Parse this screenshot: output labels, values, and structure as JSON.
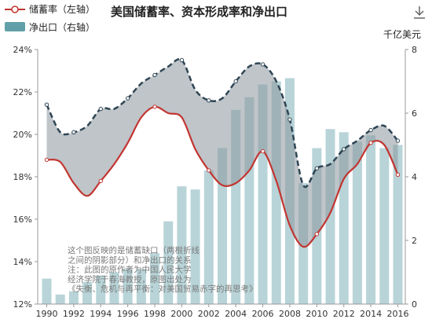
{
  "chart_data": {
    "type": "bar+line",
    "title": "美国储蓄率、资本形成率和净出口",
    "legend": [
      {
        "name": "储蓄率（左轴）",
        "color": "#c23531",
        "marker": "line-circle"
      },
      {
        "name": "净出口（右轴）",
        "color": "#61a0a8",
        "marker": "rect"
      }
    ],
    "legend_position": "top-left",
    "y_left": {
      "min": 12,
      "max": 24,
      "step": 2,
      "format": "%",
      "ticks": [
        "12%",
        "14%",
        "16%",
        "18%",
        "20%",
        "22%",
        "24%"
      ]
    },
    "y_right": {
      "min": 0,
      "max": 8,
      "step": 2,
      "unit": "千亿美元",
      "ticks": [
        "0",
        "2",
        "4",
        "6",
        "8"
      ]
    },
    "x_labels": [
      "1990",
      "1992",
      "1994",
      "1996",
      "1998",
      "2000",
      "2002",
      "2004",
      "2006",
      "2008",
      "2010",
      "2012",
      "2014",
      "2016"
    ],
    "x": [
      1990,
      1991,
      1992,
      1993,
      1994,
      1995,
      1996,
      1997,
      1998,
      1999,
      2000,
      2001,
      2002,
      2003,
      2004,
      2005,
      2006,
      2007,
      2008,
      2009,
      2010,
      2011,
      2012,
      2013,
      2014,
      2015,
      2016
    ],
    "series": [
      {
        "name": "净出口（右轴）",
        "axis": "right",
        "kind": "bar",
        "values": [
          0.8,
          0.3,
          0.4,
          0.7,
          0.9,
          1.0,
          1.1,
          1.1,
          1.6,
          2.6,
          3.7,
          3.6,
          4.2,
          4.9,
          6.1,
          6.5,
          6.9,
          7.0,
          7.1,
          3.8,
          4.9,
          5.5,
          5.4,
          5.1,
          5.3,
          4.9,
          5.0
        ]
      },
      {
        "name": "储蓄率（左轴）",
        "axis": "left",
        "kind": "line",
        "values": [
          18.8,
          18.7,
          17.7,
          17.1,
          17.8,
          18.6,
          19.6,
          20.8,
          21.3,
          21.0,
          20.8,
          19.3,
          18.3,
          17.6,
          17.7,
          18.3,
          19.2,
          17.8,
          15.7,
          14.7,
          15.3,
          16.3,
          17.9,
          18.6,
          19.6,
          19.5,
          18.1
        ]
      },
      {
        "name": "",
        "axis": "left",
        "kind": "dashed-line",
        "values": [
          21.4,
          20.1,
          20.1,
          20.4,
          21.2,
          21.2,
          21.7,
          22.4,
          22.8,
          23.2,
          23.5,
          22.1,
          21.6,
          21.7,
          22.5,
          23.2,
          23.3,
          22.5,
          20.7,
          17.6,
          18.4,
          18.6,
          19.3,
          19.7,
          20.2,
          20.4,
          19.7
        ]
      }
    ],
    "annotation": [
      "这个图反映的是储蓄缺口（两根折线",
      "之间的阴影部分）和净出口的关系",
      "注：此图的原作者为中国人民大学",
      "经济学院于春海教授，原图出处为",
      "《失衡、危机与再平衡：对美国贸易赤字的再思考》"
    ],
    "colors": {
      "saving_line": "#c23531",
      "dashed_line": "#2f4554",
      "bar": "#b8d4d8",
      "gap_fill": "#8a959c"
    }
  },
  "icons": {
    "download": "download-icon"
  }
}
